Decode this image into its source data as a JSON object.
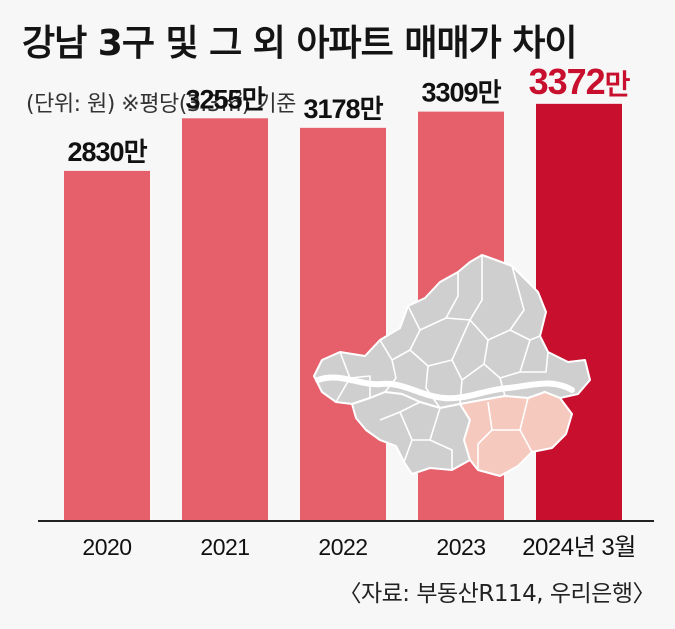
{
  "title": "강남 3구 및 그 외 아파트 매매가 차이",
  "subtitle": "(단위: 원) ※평당(3.3㎡) 기준",
  "source": "〈자료: 부동산R114, 우리은행〉",
  "colors": {
    "bar": "#e5606a",
    "bar_highlight": "#c8102e",
    "label_highlight": "#c8102e",
    "map_gray": "#cfcfcf",
    "map_gangnam": "#f6c9bf"
  },
  "chart_data": {
    "type": "bar",
    "categories": [
      "2020",
      "2021",
      "2022",
      "2023",
      "2024년 3월"
    ],
    "values": [
      2830,
      3255,
      3178,
      3309,
      3372
    ],
    "data_labels": [
      "2830만",
      "3255만",
      "3178만",
      "3309만",
      "3372만"
    ],
    "unit": "만",
    "highlight_index": 4,
    "ylim": [
      0,
      3500
    ],
    "grid": false,
    "legend": "none"
  },
  "map": {
    "icon": "seoul-district-map-icon"
  }
}
